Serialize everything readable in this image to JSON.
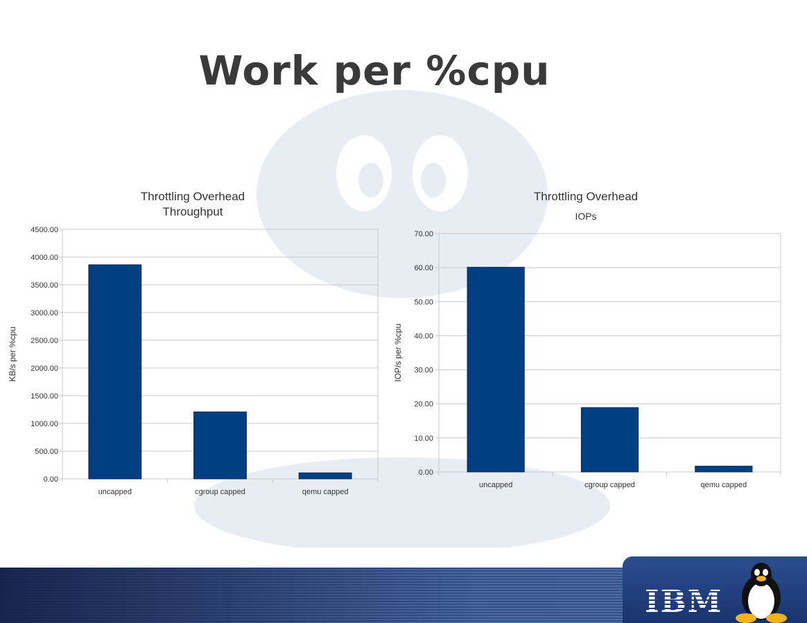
{
  "slide": {
    "title": "Work per %cpu"
  },
  "logo": {
    "text": "IBM"
  },
  "colors": {
    "bar": "#003f82",
    "grid": "#c8c8c8",
    "band": "#2c4a7e"
  },
  "chart_data": [
    {
      "type": "bar",
      "title": "Throttling Overhead",
      "subtitle": "Throughput",
      "ylabel": "KB/s per %cpu",
      "xlabel": "",
      "categories": [
        "uncapped",
        "cgroup capped",
        "qemu capped"
      ],
      "values": [
        3862,
        1208,
        108
      ],
      "ylim": [
        0,
        4500
      ],
      "yticks": [
        "0.00",
        "500.00",
        "1000.00",
        "1500.00",
        "2000.00",
        "2500.00",
        "3000.00",
        "3500.00",
        "4000.00",
        "4500.00"
      ],
      "grid": true,
      "legend": "none"
    },
    {
      "type": "bar",
      "title": "Throttling Overhead",
      "subtitle": "IOPs",
      "ylabel": "IOP/s per %cpu",
      "xlabel": "",
      "categories": [
        "uncapped",
        "cgroup capped",
        "qemu capped"
      ],
      "values": [
        60.1,
        18.9,
        1.7
      ],
      "ylim": [
        0,
        70
      ],
      "yticks": [
        "0.00",
        "10.00",
        "20.00",
        "30.00",
        "40.00",
        "50.00",
        "60.00",
        "70.00"
      ],
      "grid": true,
      "legend": "none"
    }
  ]
}
